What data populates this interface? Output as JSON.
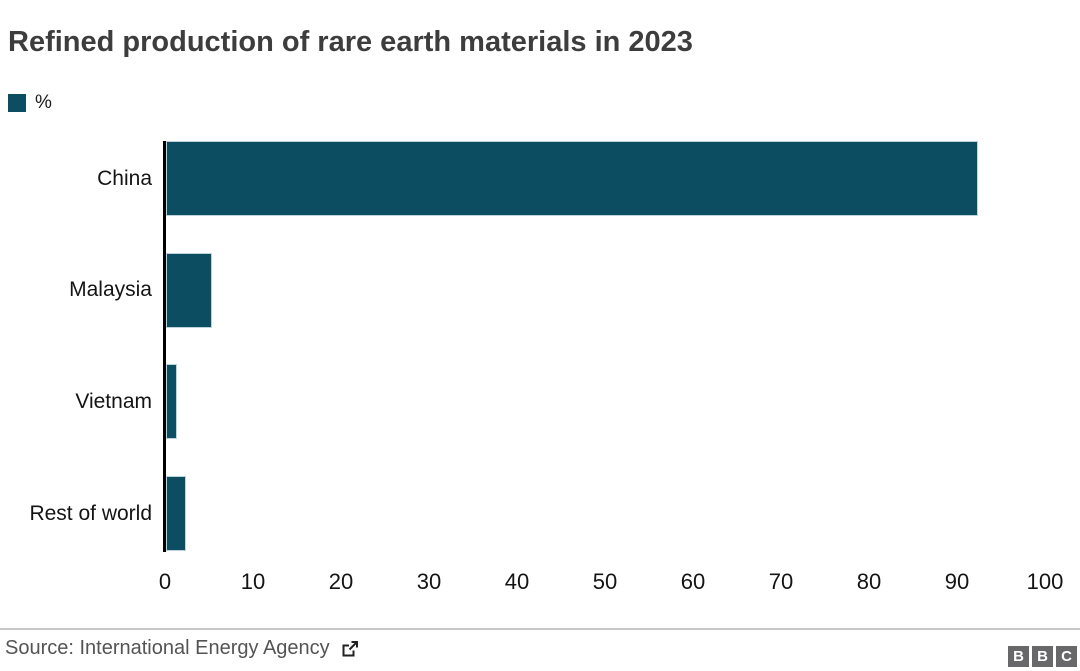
{
  "title": "Refined production of rare earth materials in 2023",
  "legend": {
    "label": "%",
    "swatch_color": "#0d4d61"
  },
  "chart_data": {
    "type": "bar",
    "orientation": "horizontal",
    "title": "Refined production of rare earth materials in 2023",
    "unit_label": "%",
    "categories": [
      "China",
      "Malaysia",
      "Vietnam",
      "Rest of world"
    ],
    "values": [
      92,
      5,
      1,
      2
    ],
    "xlim": [
      0,
      100
    ],
    "xticks": [
      0,
      10,
      20,
      30,
      40,
      50,
      60,
      70,
      80,
      90,
      100
    ],
    "grid": false,
    "legend_position": "top-left",
    "bar_color": "#0d4d61",
    "axis_color": "#000000"
  },
  "footer": {
    "source": "Source: International Energy Agency",
    "external_link_icon": "external-link",
    "logo_letters": [
      "B",
      "B",
      "C"
    ]
  },
  "colors": {
    "background": "#ffffff",
    "title_text": "#3d3d3d",
    "label_text": "#141414",
    "source_text": "#545454",
    "divider": "#c8c8c8",
    "logo_background": "#68686b"
  }
}
